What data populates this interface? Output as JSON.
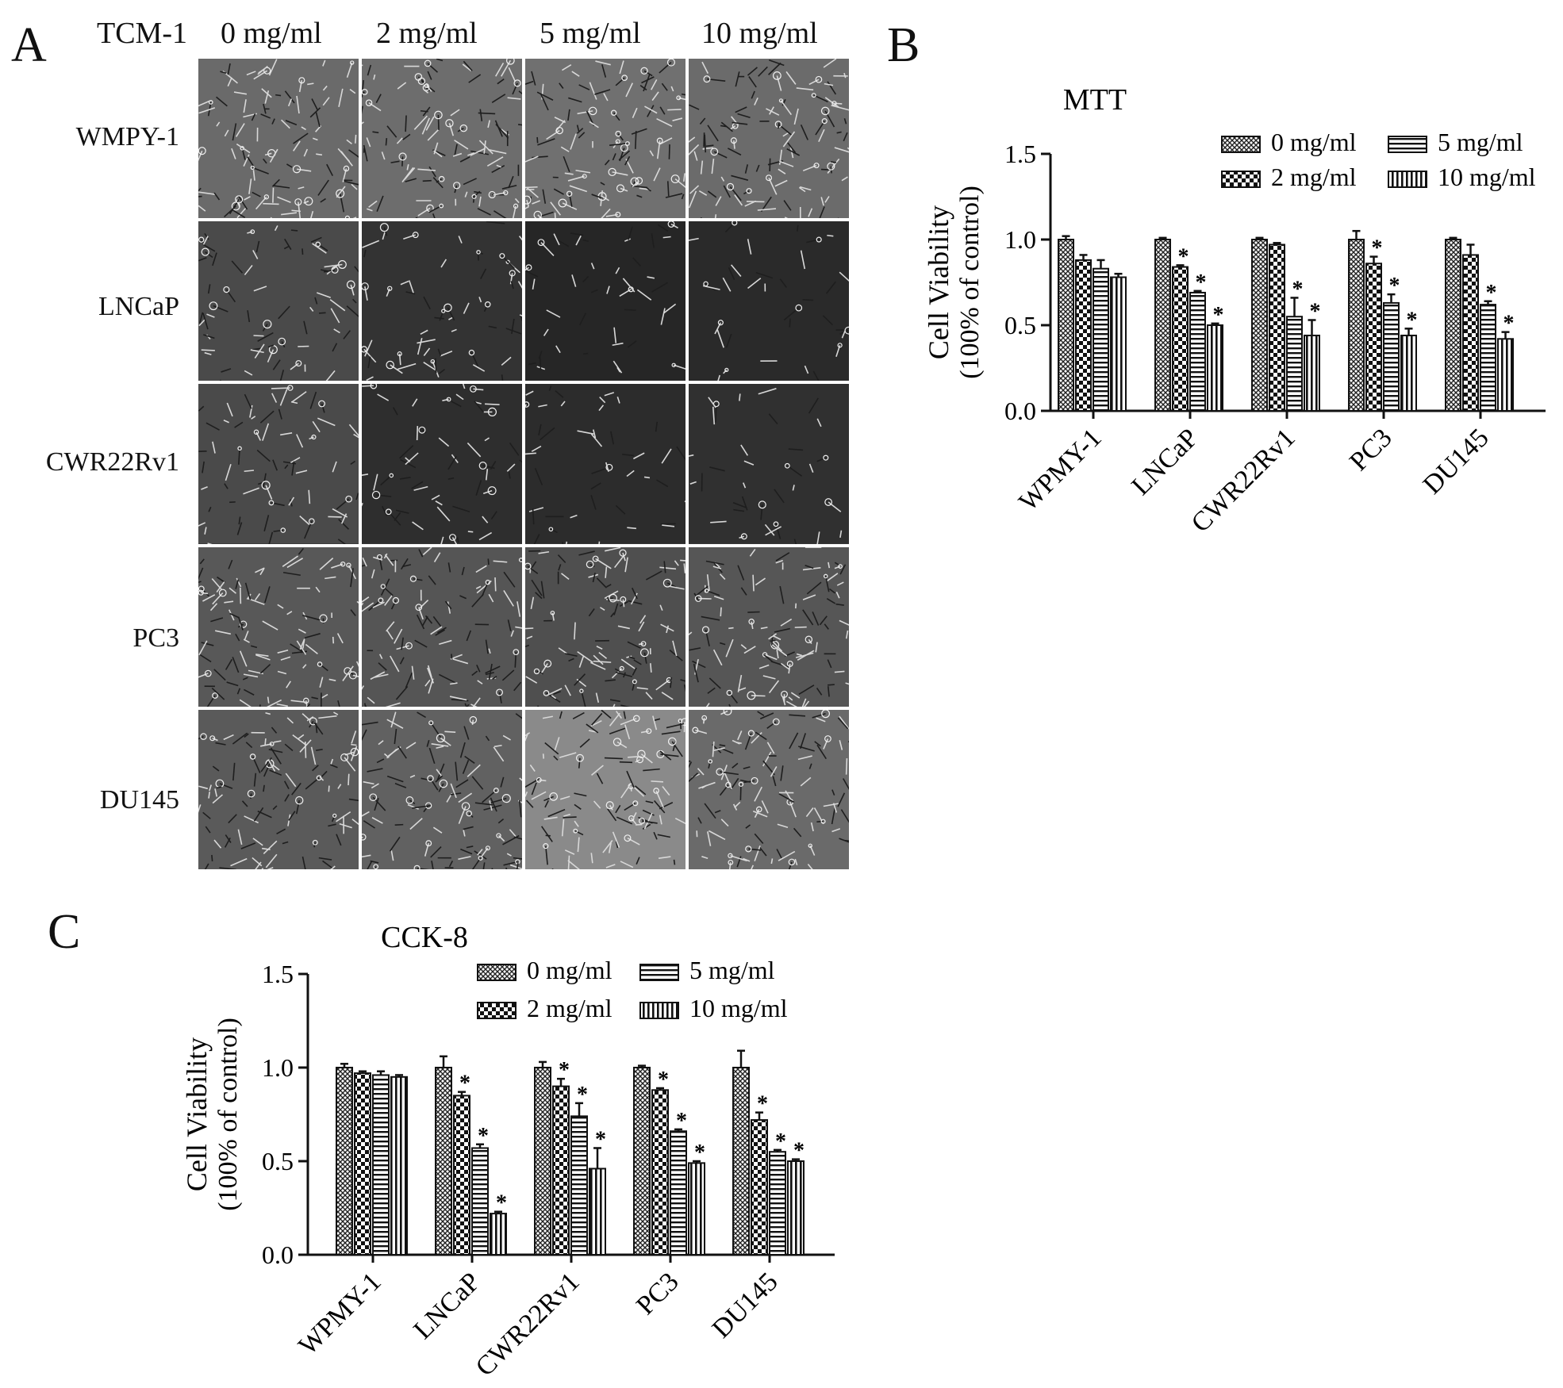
{
  "panel_a": {
    "letter": "A",
    "treatment_label": "TCM-1",
    "columns": [
      "0 mg/ml",
      "2 mg/ml",
      "5 mg/ml",
      "10 mg/ml"
    ],
    "rows": [
      "WMPY-1",
      "LNCaP",
      "CWR22Rv1",
      "PC3",
      "DU145"
    ]
  },
  "panel_b_letter": "B",
  "panel_c_letter": "C",
  "chart_data": [
    {
      "id": "mtt",
      "type": "bar",
      "title": "MTT",
      "ylabel": "Cell Viability",
      "ylabel2": "(100% of control)",
      "ylim": [
        0,
        1.5
      ],
      "yticks": [
        "0.0",
        "0.5",
        "1.0",
        "1.5"
      ],
      "categories": [
        "WPMY-1",
        "LNCaP",
        "CWR22Rv1",
        "PC3",
        "DU145"
      ],
      "legend_position": "top-right",
      "series": [
        {
          "name": "0 mg/ml",
          "pattern": "crosshatch",
          "values": [
            1.0,
            1.0,
            1.0,
            1.0,
            1.0
          ],
          "errors": [
            0.02,
            0.01,
            0.01,
            0.05,
            0.01
          ],
          "significant": [
            false,
            false,
            false,
            false,
            false
          ]
        },
        {
          "name": "2 mg/ml",
          "pattern": "checker",
          "values": [
            0.88,
            0.84,
            0.97,
            0.86,
            0.91
          ],
          "errors": [
            0.03,
            0.01,
            0.01,
            0.04,
            0.06
          ],
          "significant": [
            false,
            true,
            false,
            true,
            false
          ]
        },
        {
          "name": "5 mg/ml",
          "pattern": "hstripes",
          "values": [
            0.83,
            0.69,
            0.55,
            0.63,
            0.62
          ],
          "errors": [
            0.05,
            0.01,
            0.11,
            0.05,
            0.02
          ],
          "significant": [
            false,
            true,
            true,
            true,
            true
          ]
        },
        {
          "name": "10 mg/ml",
          "pattern": "vstripes",
          "values": [
            0.78,
            0.5,
            0.44,
            0.44,
            0.42
          ],
          "errors": [
            0.02,
            0.01,
            0.09,
            0.04,
            0.04
          ],
          "significant": [
            false,
            true,
            true,
            true,
            true
          ]
        }
      ]
    },
    {
      "id": "cck8",
      "type": "bar",
      "title": "CCK-8",
      "ylabel": "Cell Viability",
      "ylabel2": "(100% of control)",
      "ylim": [
        0,
        1.5
      ],
      "yticks": [
        "0.0",
        "0.5",
        "1.0",
        "1.5"
      ],
      "categories": [
        "WPMY-1",
        "LNCaP",
        "CWR22Rv1",
        "PC3",
        "DU145"
      ],
      "legend_position": "top-right",
      "series": [
        {
          "name": "0 mg/ml",
          "pattern": "crosshatch",
          "values": [
            1.0,
            1.0,
            1.0,
            1.0,
            1.0
          ],
          "errors": [
            0.02,
            0.06,
            0.03,
            0.01,
            0.09
          ],
          "significant": [
            false,
            false,
            false,
            false,
            false
          ]
        },
        {
          "name": "2 mg/ml",
          "pattern": "checker",
          "values": [
            0.97,
            0.85,
            0.9,
            0.88,
            0.72
          ],
          "errors": [
            0.01,
            0.02,
            0.04,
            0.01,
            0.04
          ],
          "significant": [
            false,
            true,
            true,
            true,
            true
          ]
        },
        {
          "name": "5 mg/ml",
          "pattern": "hstripes",
          "values": [
            0.96,
            0.57,
            0.74,
            0.66,
            0.55
          ],
          "errors": [
            0.02,
            0.02,
            0.07,
            0.01,
            0.01
          ],
          "significant": [
            false,
            true,
            true,
            true,
            true
          ]
        },
        {
          "name": "10 mg/ml",
          "pattern": "vstripes",
          "values": [
            0.95,
            0.22,
            0.46,
            0.49,
            0.5
          ],
          "errors": [
            0.01,
            0.01,
            0.11,
            0.01,
            0.01
          ],
          "significant": [
            false,
            true,
            true,
            true,
            true
          ]
        }
      ]
    }
  ],
  "significance_marker": "*"
}
